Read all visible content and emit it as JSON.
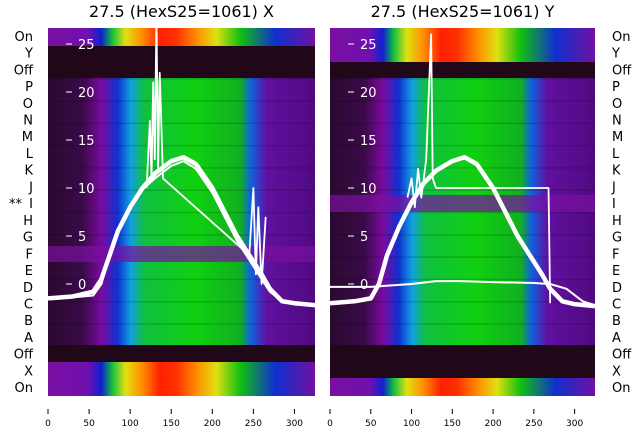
{
  "chart_data": [
    {
      "type": "heatmap",
      "title": "27.5 (HexS25=1061) X",
      "row_labels_side": "left",
      "extra_mark": {
        "row": "I",
        "text": "**"
      },
      "xlim": [
        0,
        325
      ],
      "xticks": [
        0,
        50,
        100,
        150,
        200,
        250,
        300
      ],
      "ylim": [
        -3,
        26.5
      ],
      "yticks": [
        0,
        5,
        10,
        15,
        20,
        25
      ],
      "rows": [
        "On",
        "Y",
        "Off",
        "P",
        "O",
        "N",
        "M",
        "L",
        "K",
        "J",
        "I",
        "H",
        "G",
        "F",
        "E",
        "D",
        "C",
        "B",
        "A",
        "Off",
        "X",
        "On"
      ],
      "series": [
        {
          "name": "main",
          "x": [
            0,
            30,
            55,
            65,
            75,
            85,
            100,
            115,
            130,
            150,
            165,
            180,
            200,
            215,
            230,
            245,
            260,
            270,
            285,
            300,
            325
          ],
          "y": [
            -1.5,
            -1.3,
            -0.8,
            0.5,
            3,
            5.5,
            8,
            10,
            11.5,
            12.8,
            13.2,
            12.5,
            10,
            7.5,
            5,
            3,
            1,
            -0.5,
            -1.8,
            -2,
            -2.2
          ]
        },
        {
          "name": "secondary",
          "x": [
            0,
            30,
            55,
            65,
            75,
            85,
            100,
            115,
            130,
            150,
            165,
            180,
            200,
            215,
            230,
            245,
            260,
            270,
            285,
            300,
            325
          ],
          "y": [
            -1.5,
            -1.4,
            -1.2,
            0,
            3,
            5.5,
            8,
            9.8,
            11,
            12.3,
            12.8,
            12,
            9.5,
            7,
            4.5,
            2.5,
            0.5,
            -0.8,
            -1.8,
            -2.1,
            -2.3
          ]
        },
        {
          "name": "spikes",
          "x": [
            120,
            124,
            126,
            128,
            130,
            132,
            134,
            136,
            140,
            245,
            250,
            253,
            256,
            260,
            265
          ],
          "y": [
            10,
            17,
            11,
            21,
            13,
            28,
            12,
            22,
            11,
            3,
            10,
            1,
            8,
            0,
            7
          ]
        }
      ]
    },
    {
      "type": "heatmap",
      "title": "27.5 (HexS25=1061) Y",
      "row_labels_side": "right",
      "xlim": [
        0,
        325
      ],
      "xticks": [
        0,
        50,
        100,
        150,
        200,
        250,
        300
      ],
      "ylim": [
        -3,
        26.5
      ],
      "yticks": [
        0,
        5,
        10,
        15,
        20,
        25
      ],
      "rows": [
        "On",
        "Y",
        "Off",
        "P",
        "O",
        "N",
        "M",
        "L",
        "K",
        "J",
        "I",
        "H",
        "G",
        "F",
        "E",
        "D",
        "C",
        "B",
        "A",
        "Off",
        "X",
        "On"
      ],
      "series": [
        {
          "name": "main",
          "x": [
            0,
            30,
            50,
            60,
            70,
            85,
            100,
            115,
            130,
            150,
            165,
            180,
            200,
            215,
            230,
            245,
            260,
            270,
            285,
            300,
            325
          ],
          "y": [
            -2,
            -1.8,
            -1.5,
            0,
            3,
            6,
            8.5,
            10.5,
            11.8,
            12.8,
            13.2,
            12.5,
            10,
            7.5,
            5,
            3,
            1,
            -0.5,
            -1.8,
            -2.1,
            -2.3
          ]
        },
        {
          "name": "flat",
          "x": [
            0,
            50,
            100,
            130,
            160,
            200,
            250,
            270,
            290,
            310,
            325
          ],
          "y": [
            -0.3,
            -0.3,
            0,
            0.3,
            0.3,
            0.2,
            0.1,
            0,
            -0.5,
            -1.8,
            -2.2
          ]
        },
        {
          "name": "spikes",
          "x": [
            95,
            100,
            104,
            108,
            112,
            118,
            124,
            126,
            130,
            268,
            270
          ],
          "y": [
            9,
            11,
            8,
            12,
            9,
            13,
            26,
            11,
            10,
            10,
            -2
          ]
        }
      ]
    }
  ]
}
